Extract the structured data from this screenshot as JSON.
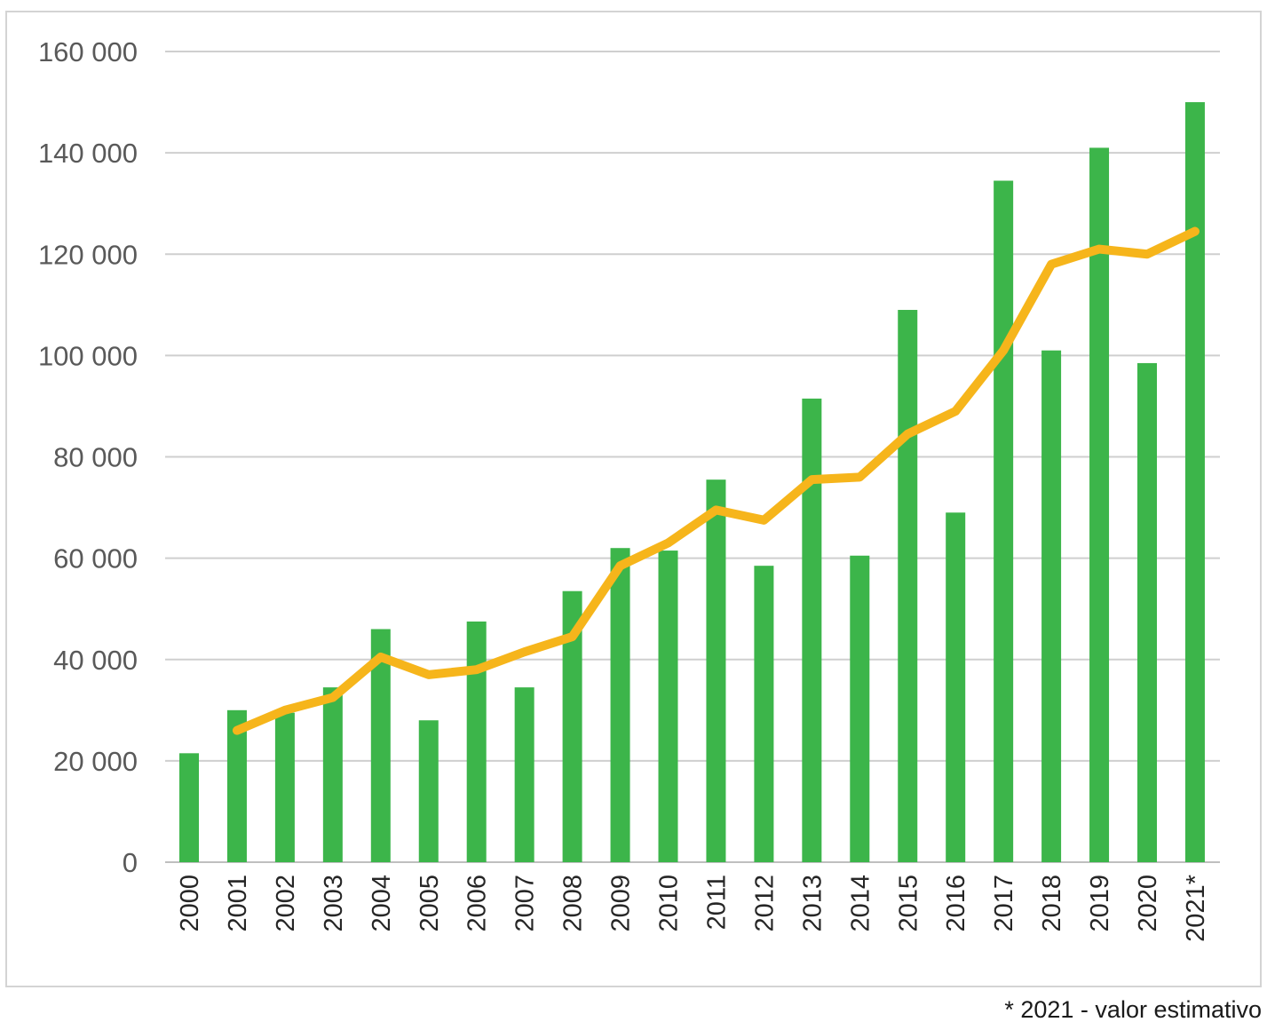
{
  "chart_data": {
    "type": "bar",
    "categories": [
      "2000",
      "2001",
      "2002",
      "2003",
      "2004",
      "2005",
      "2006",
      "2007",
      "2008",
      "2009",
      "2010",
      "2011",
      "2012",
      "2013",
      "2014",
      "2015",
      "2016",
      "2017",
      "2018",
      "2019",
      "2020",
      "2021*"
    ],
    "series": [
      {
        "type": "bar",
        "color": "#3cb54a",
        "values": [
          21500,
          30000,
          29500,
          34500,
          46000,
          28000,
          47500,
          34500,
          53500,
          62000,
          61500,
          75500,
          58500,
          91500,
          60500,
          109000,
          69000,
          134500,
          101000,
          141000,
          98500,
          150000
        ]
      },
      {
        "type": "line",
        "color": "#f6b51b",
        "start_index": 1,
        "values": [
          null,
          26000,
          30000,
          32500,
          40500,
          37000,
          38000,
          41500,
          44500,
          58500,
          63000,
          69500,
          67500,
          75500,
          76000,
          84500,
          89000,
          101000,
          118000,
          121000,
          120000,
          124500
        ]
      }
    ],
    "ylim": [
      0,
      160000
    ],
    "yticks": [
      0,
      20000,
      40000,
      60000,
      80000,
      100000,
      120000,
      140000,
      160000
    ],
    "ytick_labels": [
      "0",
      "20 000",
      "40 000",
      "60 000",
      "80 000",
      "100 000",
      "120 000",
      "140 000",
      "160 000"
    ],
    "grid": true,
    "title": "",
    "xlabel": "",
    "ylabel": ""
  },
  "footnote": "* 2021 - valor estimativo"
}
